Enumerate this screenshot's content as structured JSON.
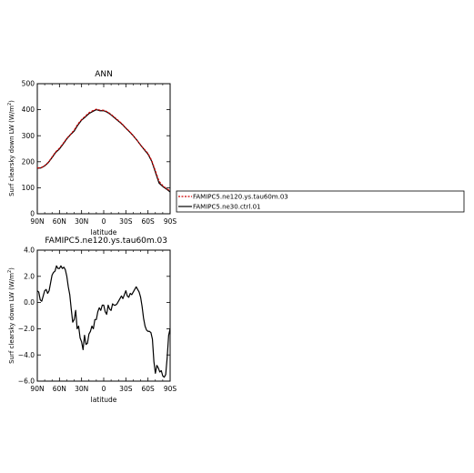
{
  "chart_data": [
    {
      "type": "line",
      "title": "ANN",
      "xlabel": "latitude",
      "ylabel": "Surf clearsky down LW (W/m",
      "ylabel_sup": "2",
      "ylabel_end": ")",
      "xlim": [
        90,
        -90
      ],
      "ylim": [
        0,
        500
      ],
      "x_ticks": [
        90,
        60,
        30,
        0,
        -30,
        -60,
        -90
      ],
      "x_tick_labels": [
        "90N",
        "60N",
        "30N",
        "0",
        "30S",
        "60S",
        "90S"
      ],
      "y_ticks": [
        0,
        100,
        200,
        300,
        400,
        500
      ],
      "y_tick_labels": [
        "0",
        "100",
        "200",
        "300",
        "400",
        "500"
      ],
      "series": [
        {
          "name": "FAMIPC5.ne120.ys.tau60m.03",
          "color": "#cc0000",
          "style": "dashed",
          "x": [
            90,
            85,
            80,
            75,
            70,
            65,
            60,
            55,
            50,
            45,
            40,
            35,
            30,
            25,
            20,
            15,
            10,
            5,
            0,
            -5,
            -10,
            -15,
            -20,
            -25,
            -30,
            -35,
            -40,
            -45,
            -50,
            -55,
            -60,
            -65,
            -70,
            -75,
            -80,
            -85,
            -90
          ],
          "y": [
            176,
            177,
            185,
            198,
            218,
            238,
            252,
            270,
            290,
            305,
            322,
            345,
            362,
            375,
            388,
            396,
            402,
            398,
            398,
            392,
            382,
            370,
            358,
            345,
            330,
            316,
            300,
            283,
            264,
            248,
            232,
            205,
            165,
            125,
            108,
            97,
            88
          ]
        },
        {
          "name": "FAMIPC5.ne30.ctrl.01",
          "color": "#000000",
          "style": "solid",
          "x": [
            90,
            85,
            80,
            75,
            70,
            65,
            60,
            55,
            50,
            45,
            40,
            35,
            30,
            25,
            20,
            15,
            10,
            5,
            0,
            -5,
            -10,
            -15,
            -20,
            -25,
            -30,
            -35,
            -40,
            -45,
            -50,
            -55,
            -60,
            -65,
            -70,
            -75,
            -80,
            -85,
            -90
          ],
          "y": [
            175,
            176,
            184,
            197,
            216,
            236,
            249,
            268,
            288,
            304,
            318,
            341,
            360,
            372,
            385,
            393,
            400,
            396,
            396,
            390,
            380,
            368,
            356,
            344,
            329,
            315,
            300,
            283,
            264,
            246,
            229,
            202,
            160,
            118,
            105,
            95,
            84
          ]
        }
      ]
    },
    {
      "type": "line",
      "title": "FAMIPC5.ne120.ys.tau60m.03",
      "xlabel": "latitude",
      "ylabel": "Surf clearsky down LW (W/m",
      "ylabel_sup": "2",
      "ylabel_end": ")",
      "xlim": [
        90,
        -90
      ],
      "ylim": [
        -6,
        4
      ],
      "x_ticks": [
        90,
        60,
        30,
        0,
        -30,
        -60,
        -90
      ],
      "x_tick_labels": [
        "90N",
        "60N",
        "30N",
        "0",
        "30S",
        "60S",
        "90S"
      ],
      "y_ticks": [
        -6,
        -4,
        -2,
        0,
        2,
        4
      ],
      "y_tick_labels": [
        "−6.0",
        "−4.0",
        "−2.0",
        "0.0",
        "2.0",
        "4.0"
      ],
      "series": [
        {
          "color": "#000000",
          "style": "solid",
          "x": [
            90,
            88,
            86,
            84,
            82,
            80,
            78,
            76,
            74,
            72,
            70,
            68,
            66,
            64,
            62,
            60,
            58,
            56,
            54,
            52,
            50,
            48,
            46,
            44,
            42,
            40,
            38,
            36,
            34,
            32,
            30,
            28,
            26,
            24,
            22,
            20,
            18,
            16,
            14,
            12,
            10,
            8,
            6,
            4,
            2,
            0,
            -2,
            -4,
            -6,
            -8,
            -10,
            -12,
            -14,
            -16,
            -18,
            -20,
            -22,
            -24,
            -26,
            -28,
            -30,
            -32,
            -34,
            -36,
            -38,
            -40,
            -42,
            -44,
            -46,
            -48,
            -50,
            -52,
            -54,
            -56,
            -58,
            -60,
            -62,
            -64,
            -66,
            -68,
            -70,
            -72,
            -74,
            -76,
            -78,
            -80,
            -82,
            -84,
            -86,
            -88,
            -90
          ],
          "y": [
            0.9,
            0.8,
            0.2,
            0.1,
            0.5,
            0.9,
            1.0,
            0.7,
            0.9,
            1.5,
            2.1,
            2.3,
            2.4,
            2.8,
            2.6,
            2.6,
            2.8,
            2.6,
            2.7,
            2.5,
            2.0,
            1.2,
            0.6,
            -0.5,
            -1.5,
            -1.3,
            -0.6,
            -2.0,
            -1.8,
            -2.7,
            -3.0,
            -3.6,
            -2.5,
            -3.2,
            -3.1,
            -2.4,
            -2.2,
            -1.8,
            -2.0,
            -1.3,
            -1.3,
            -0.7,
            -0.4,
            -0.6,
            -0.2,
            -0.2,
            -0.7,
            -0.9,
            -0.2,
            -0.5,
            -0.6,
            -0.1,
            -0.2,
            -0.2,
            -0.1,
            0.1,
            0.3,
            0.5,
            0.3,
            0.6,
            0.9,
            0.5,
            0.4,
            0.7,
            0.6,
            0.8,
            1.0,
            1.2,
            1.0,
            0.8,
            0.4,
            -0.3,
            -1.2,
            -1.8,
            -2.1,
            -2.2,
            -2.2,
            -2.3,
            -2.8,
            -4.5,
            -5.4,
            -4.8,
            -5.0,
            -5.3,
            -5.2,
            -5.6,
            -5.7,
            -5.5,
            -4.2,
            -2.5,
            -2.0
          ]
        }
      ]
    }
  ],
  "legend": {
    "entries": [
      "FAMIPC5.ne120.ys.tau60m.03",
      "FAMIPC5.ne30.ctrl.01"
    ]
  }
}
